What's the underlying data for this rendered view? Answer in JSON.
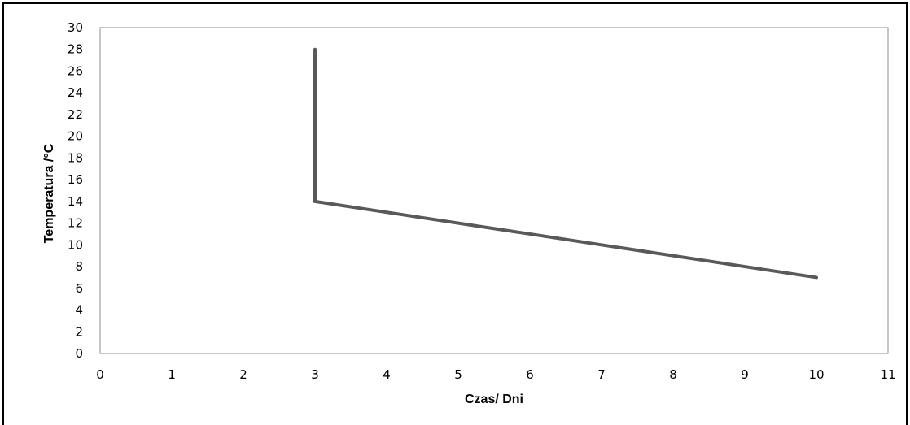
{
  "chart_data": {
    "type": "line",
    "xlabel": "Czas/ Dni",
    "ylabel": "Temperatura /°C",
    "xlim": [
      0,
      11
    ],
    "ylim": [
      0,
      30
    ],
    "xticks": [
      0,
      1,
      2,
      3,
      4,
      5,
      6,
      7,
      8,
      9,
      10,
      11
    ],
    "yticks": [
      0,
      2,
      4,
      6,
      8,
      10,
      12,
      14,
      16,
      18,
      20,
      22,
      24,
      26,
      28,
      30
    ],
    "grid": false,
    "series": [
      {
        "color": "#595959",
        "points": [
          {
            "x": 3,
            "y": 28
          },
          {
            "x": 3,
            "y": 14
          },
          {
            "x": 10,
            "y": 7
          }
        ]
      }
    ]
  }
}
